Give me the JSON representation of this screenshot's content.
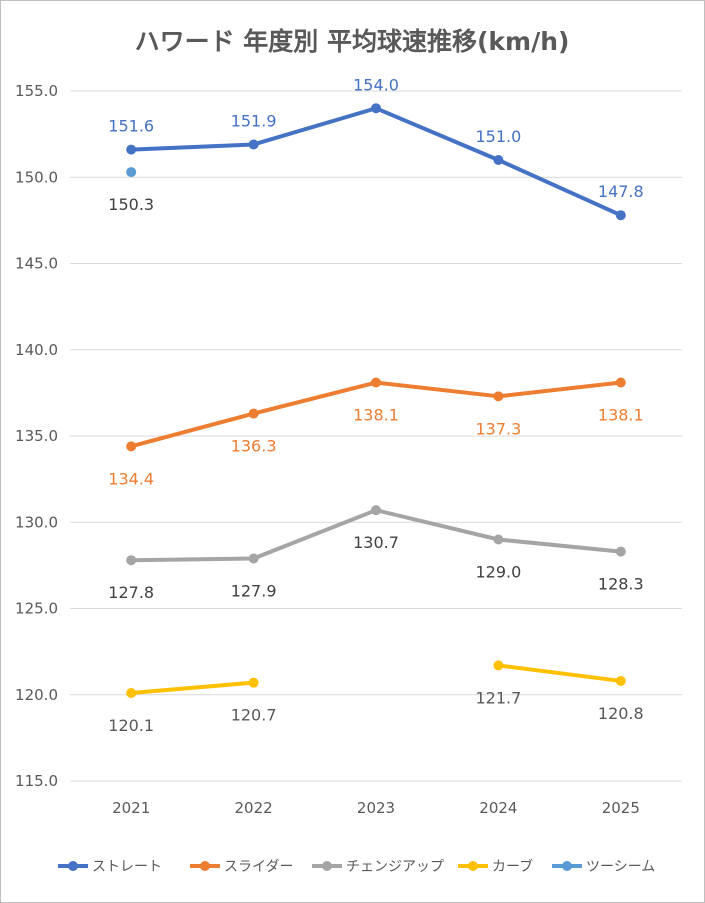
{
  "chart_data": {
    "type": "line",
    "title": "ハワード 年度別 平均球速推移(km/h)",
    "categories": [
      "2021",
      "2022",
      "2023",
      "2024",
      "2025"
    ],
    "ylim": [
      115.0,
      155.0
    ],
    "yticks": [
      "115.0",
      "120.0",
      "125.0",
      "130.0",
      "135.0",
      "140.0",
      "145.0",
      "150.0",
      "155.0"
    ],
    "grid": true,
    "legend_position": "bottom",
    "series": [
      {
        "name": "ストレート",
        "color": "#4472C4",
        "label_color": "#4472C4",
        "label_pos": "above",
        "values": [
          151.6,
          151.9,
          154.0,
          151.0,
          147.8
        ],
        "labels": [
          "151.6",
          "151.9",
          "154.0",
          "151.0",
          "147.8"
        ]
      },
      {
        "name": "スライダー",
        "color": "#ED7D31",
        "label_color": "#ED7D31",
        "label_pos": "below",
        "values": [
          134.4,
          136.3,
          138.1,
          137.3,
          138.1
        ],
        "labels": [
          "134.4",
          "136.3",
          "138.1",
          "137.3",
          "138.1"
        ]
      },
      {
        "name": "チェンジアップ",
        "color": "#A5A5A5",
        "label_color": "#404040",
        "label_pos": "below",
        "values": [
          127.8,
          127.9,
          130.7,
          129.0,
          128.3
        ],
        "labels": [
          "127.8",
          "127.9",
          "130.7",
          "129.0",
          "128.3"
        ]
      },
      {
        "name": "カーブ",
        "color": "#FFC000",
        "label_color": "#595959",
        "label_pos": "below",
        "values": [
          120.1,
          120.7,
          null,
          121.7,
          120.8
        ],
        "labels": [
          "120.1",
          "120.7",
          "",
          "121.7",
          "120.8"
        ]
      },
      {
        "name": "ツーシーム",
        "color": "#5B9BD5",
        "label_color": "#404040",
        "label_pos": "below",
        "values": [
          150.3,
          null,
          null,
          null,
          null
        ],
        "labels": [
          "150.3",
          "",
          "",
          "",
          ""
        ]
      }
    ]
  }
}
